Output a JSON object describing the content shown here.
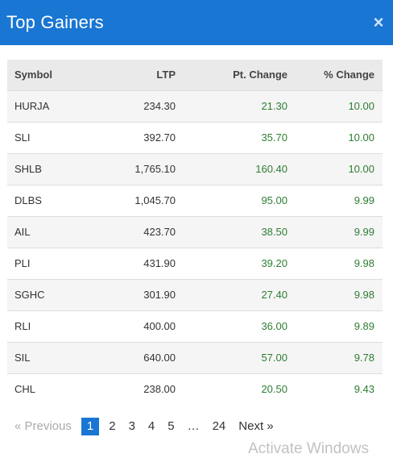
{
  "header": {
    "title": "Top Gainers",
    "close_glyph": "×"
  },
  "table": {
    "columns": [
      "Symbol",
      "LTP",
      "Pt. Change",
      "% Change"
    ],
    "rows": [
      {
        "symbol": "HURJA",
        "ltp": "234.30",
        "pt_change": "21.30",
        "pct_change": "10.00"
      },
      {
        "symbol": "SLI",
        "ltp": "392.70",
        "pt_change": "35.70",
        "pct_change": "10.00"
      },
      {
        "symbol": "SHLB",
        "ltp": "1,765.10",
        "pt_change": "160.40",
        "pct_change": "10.00"
      },
      {
        "symbol": "DLBS",
        "ltp": "1,045.70",
        "pt_change": "95.00",
        "pct_change": "9.99"
      },
      {
        "symbol": "AIL",
        "ltp": "423.70",
        "pt_change": "38.50",
        "pct_change": "9.99"
      },
      {
        "symbol": "PLI",
        "ltp": "431.90",
        "pt_change": "39.20",
        "pct_change": "9.98"
      },
      {
        "symbol": "SGHC",
        "ltp": "301.90",
        "pt_change": "27.40",
        "pct_change": "9.98"
      },
      {
        "symbol": "RLI",
        "ltp": "400.00",
        "pt_change": "36.00",
        "pct_change": "9.89"
      },
      {
        "symbol": "SIL",
        "ltp": "640.00",
        "pt_change": "57.00",
        "pct_change": "9.78"
      },
      {
        "symbol": "CHL",
        "ltp": "238.00",
        "pt_change": "20.50",
        "pct_change": "9.43"
      }
    ]
  },
  "pagination": {
    "previous": "« Previous",
    "pages": [
      "1",
      "2",
      "3",
      "4",
      "5"
    ],
    "active_page": "1",
    "ellipsis": "…",
    "last_page": "24",
    "next": "Next »"
  },
  "watermark": "Activate Windows",
  "colors": {
    "header_bg": "#1976d2",
    "positive": "#2e7d32",
    "active_page": "#1976d2"
  }
}
